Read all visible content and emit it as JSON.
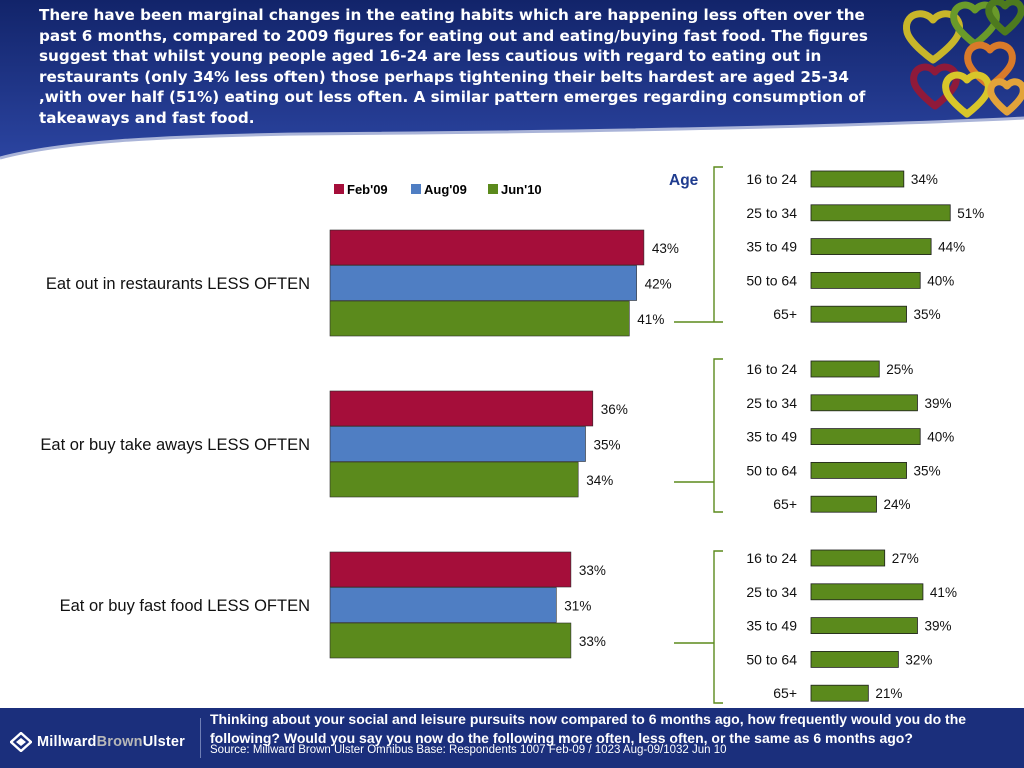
{
  "header": {
    "text": "There have been marginal changes in the eating habits which are happening less often over the past 6 months, compared to 2009 figures for eating out and eating/buying fast food.  The figures suggest that whilst young people  aged 16-24  are less cautious  with regard to eating out in restaurants (only 34% less often)  those perhaps  tightening their belts hardest are aged 25-34 ,with over half (51%) eating out less often.  A similar pattern emerges regarding consumption of takeaways and fast food."
  },
  "colors": {
    "header_bg": "#1b2f7c",
    "feb09": "#a50e3a",
    "aug09": "#4f7ec3",
    "jun10": "#5b8a1c",
    "age_bar": "#5b8a1c",
    "age_label": "#1f3c8f",
    "bracket": "#5b8a1c"
  },
  "chart_data": [
    {
      "type": "bar",
      "orientation": "horizontal",
      "categories": [
        "Eat out in restaurants LESS OFTEN",
        "Eat or buy take aways LESS OFTEN",
        "Eat or buy fast food LESS OFTEN"
      ],
      "series": [
        {
          "name": "Feb'09",
          "values": [
            43,
            36,
            33
          ],
          "labels": [
            "43%",
            "36%",
            "33%"
          ]
        },
        {
          "name": "Aug'09",
          "values": [
            42,
            35,
            31
          ],
          "labels": [
            "42%",
            "35%",
            "31%"
          ]
        },
        {
          "name": "Jun'10",
          "values": [
            41,
            34,
            33
          ],
          "labels": [
            "41%",
            "34%",
            "33%"
          ]
        }
      ],
      "legend_position": "top",
      "xlim": [
        0,
        100
      ],
      "grid": false
    },
    {
      "type": "bar",
      "orientation": "horizontal",
      "title": "Age",
      "groups": [
        {
          "parent": "Eat out in restaurants LESS OFTEN",
          "categories": [
            "16 to 24",
            "25 to 34",
            "35 to 49",
            "50 to 64",
            "65+"
          ],
          "values": [
            34,
            51,
            44,
            40,
            35
          ],
          "labels": [
            "34%",
            "51%",
            "44%",
            "40%",
            "35%"
          ]
        },
        {
          "parent": "Eat or buy take aways LESS OFTEN",
          "categories": [
            "16 to 24",
            "25 to 34",
            "35 to 49",
            "50 to 64",
            "65+"
          ],
          "values": [
            25,
            39,
            40,
            35,
            24
          ],
          "labels": [
            "25%",
            "39%",
            "40%",
            "35%",
            "24%"
          ]
        },
        {
          "parent": "Eat or buy fast food LESS OFTEN",
          "categories": [
            "16 to 24",
            "25 to 34",
            "35 to 49",
            "50 to 64",
            "65+"
          ],
          "values": [
            27,
            41,
            39,
            32,
            21
          ],
          "labels": [
            "27%",
            "41%",
            "39%",
            "32%",
            "21%"
          ]
        }
      ],
      "grid": false
    }
  ],
  "footer": {
    "logo_part1": "Millward",
    "logo_part2": "Brown",
    "logo_part3": "Ulster",
    "question": "Thinking about your social and leisure pursuits now compared to 6 months ago, how frequently would you do the following? Would you say you now do the following more often, less often, or the same as 6 months ago?",
    "source": "Source: Millward Brown Ulster Omnibus  Base: Respondents 1007 Feb-09 / 1023 Aug-09/1032 Jun 10"
  }
}
